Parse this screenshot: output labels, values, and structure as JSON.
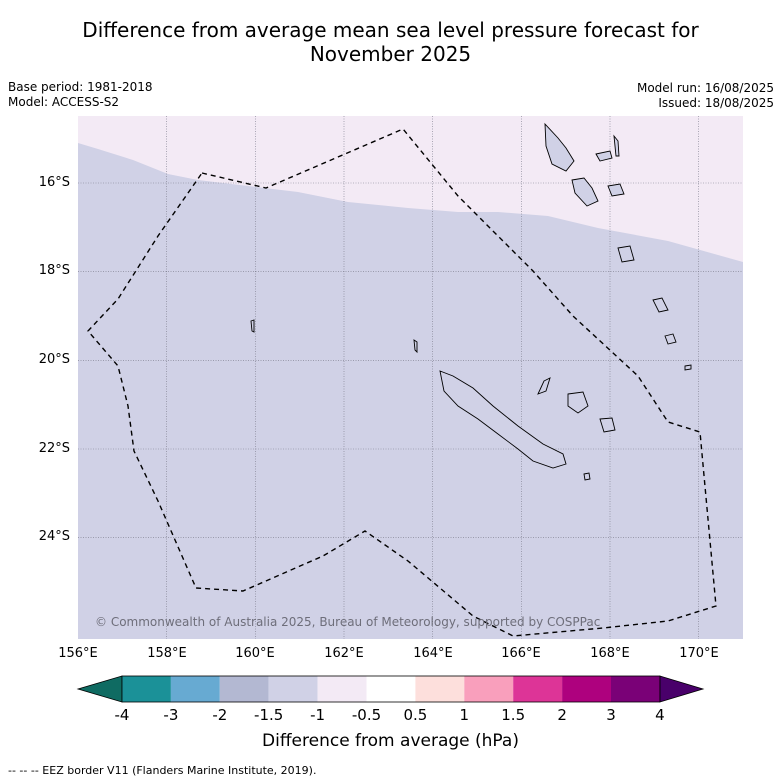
{
  "title_line1": "Difference from average mean sea level pressure forecast for",
  "title_line2": "November 2025",
  "base_period": "Base period: 1981-2018",
  "model": "Model: ACCESS-S2",
  "model_run": "Model run: 16/08/2025",
  "issued": "Issued: 18/08/2025",
  "copyright": "© Commonwealth of Australia 2025, Bureau of Meteorology, supported by COSPPac",
  "lat_labels": [
    "16°S",
    "18°S",
    "20°S",
    "22°S",
    "24°S"
  ],
  "lon_labels": [
    "156°E",
    "158°E",
    "160°E",
    "162°E",
    "164°E",
    "166°E",
    "168°E",
    "170°E"
  ],
  "colorbar": {
    "ticks": [
      "-4",
      "-3",
      "-2",
      "-1.5",
      "-1",
      "-0.5",
      "0.5",
      "1",
      "1.5",
      "2",
      "3",
      "4"
    ],
    "colors": [
      "#0f6b62",
      "#1b9198",
      "#67aad2",
      "#b3b8d2",
      "#d0d1e6",
      "#f3eaf5",
      "#ffffff",
      "#fddfdc",
      "#f99fbc",
      "#dd3497",
      "#ae017e",
      "#7a0177",
      "#49006a"
    ],
    "title": "Difference from average (hPa)"
  },
  "footer": "--  --  -- EEZ border V11 (Flanders Marine Institute, 2019)."
}
